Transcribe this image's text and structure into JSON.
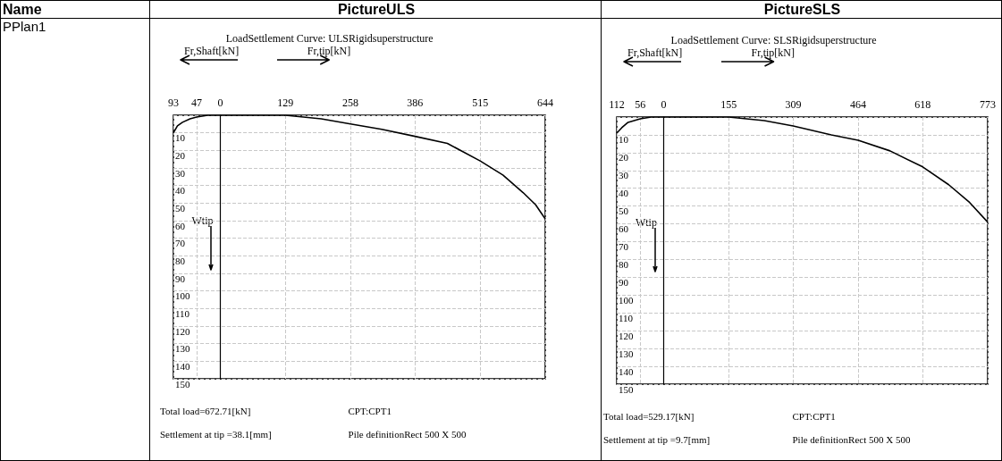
{
  "chart_data": [
    {
      "type": "other",
      "annotations": [
        "Name",
        "PPlan1"
      ]
    },
    {
      "type": "line",
      "title": "PictureULS",
      "subtitle": "LoadSettlement Curve: ULSRigidsuperstructure",
      "xlabel": "Fr,tip[kN]",
      "ylabel": "Wtip",
      "annotations": [
        "Fr,Shaft[kN]",
        "Total load=672.71[kN]",
        "Settlement at tip =38.1[mm]",
        "CPT:CPT1",
        "Pile definitionRect 500 X 500"
      ],
      "series": [
        {
          "color": "#000000",
          "x": [
            -93,
            -85,
            -75,
            -60,
            -47,
            -25,
            0,
            129,
            200,
            258,
            320,
            386,
            450,
            515,
            560,
            600,
            625,
            644
          ],
          "values": [
            10,
            6,
            4,
            2,
            1,
            0,
            0,
            0,
            2,
            5,
            8,
            12,
            16,
            26,
            34,
            44,
            51,
            59
          ]
        }
      ],
      "xlim": [
        -93,
        644
      ],
      "xticks": [
        {
          "value": -93,
          "label": "93"
        },
        {
          "value": -47,
          "label": "47"
        },
        0,
        129,
        258,
        386,
        515,
        644
      ],
      "ylim": [
        150,
        0
      ],
      "yticks": [
        {
          "value": 0,
          "label": null
        },
        10,
        20,
        30,
        40,
        50,
        60,
        70,
        80,
        90,
        100,
        110,
        120,
        130,
        140,
        150
      ],
      "grid": true
    },
    {
      "type": "line",
      "title": "PictureSLS",
      "subtitle": "LoadSettlement Curve: SLSRigidsuperstructure",
      "xlabel": "Fr,tip[kN]",
      "ylabel": "Wtip",
      "annotations": [
        "Fr,Shaft[kN]",
        "Total load=529.17[kN]",
        "Settlement at tip =9.7[mm]",
        "CPT:CPT1",
        "Pile definitionRect 500 X 500"
      ],
      "series": [
        {
          "color": "#000000",
          "x": [
            -112,
            -100,
            -85,
            -56,
            -30,
            0,
            155,
            240,
            309,
            400,
            464,
            540,
            618,
            680,
            730,
            773
          ],
          "values": [
            9,
            6,
            3,
            1,
            0,
            0,
            0,
            2,
            5,
            10,
            13,
            19,
            28,
            38,
            48,
            59
          ]
        }
      ],
      "xlim": [
        -112,
        773
      ],
      "xticks": [
        {
          "value": -112,
          "label": "112"
        },
        {
          "value": -56,
          "label": "56"
        },
        0,
        155,
        309,
        464,
        618,
        773
      ],
      "ylim": [
        150,
        0
      ],
      "yticks": [
        {
          "value": 0,
          "label": null
        },
        10,
        20,
        30,
        40,
        50,
        60,
        70,
        80,
        90,
        100,
        110,
        120,
        130,
        140,
        150
      ],
      "grid": true
    }
  ]
}
